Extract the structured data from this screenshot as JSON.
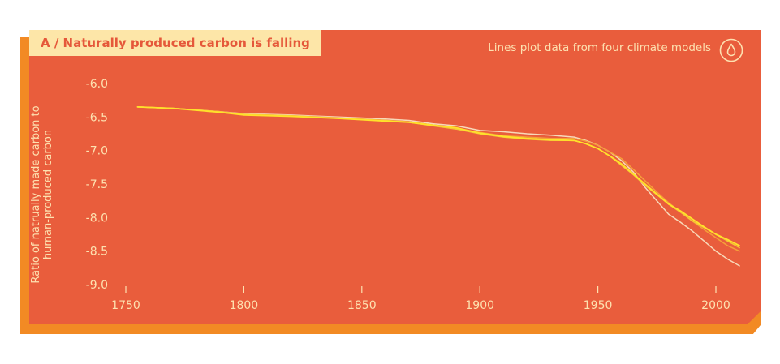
{
  "colors": {
    "panel": "#e95d3c",
    "shadow": "#f28a24",
    "badge_bg": "#fde6a8",
    "badge_text": "#e5583a",
    "text_light": "#fde1b0",
    "axis": "#fde1b0"
  },
  "header": {
    "title": "A / Naturally produced carbon is falling",
    "note": "Lines plot data from four climate models",
    "icon": "drop-icon"
  },
  "chart_data": {
    "type": "line",
    "title": "A / Naturally produced carbon is falling",
    "ylabel_lines": [
      "Ratio of natrually made carbon to",
      "human-produced carbon"
    ],
    "xlabel": "",
    "xlim": [
      1740,
      2015
    ],
    "ylim": [
      -9.0,
      -6.0
    ],
    "x_ticks": [
      "1750",
      "1800",
      "1850",
      "1900",
      "1950",
      "2000"
    ],
    "y_ticks": [
      "-6.0",
      "-6.5",
      "-7.0",
      "-7.5",
      "-8.0",
      "-8.5",
      "-9.0"
    ],
    "grid": false,
    "series": [
      {
        "color": "#f7d9b9",
        "x": [
          1755,
          1770,
          1790,
          1800,
          1820,
          1840,
          1860,
          1870,
          1880,
          1890,
          1900,
          1910,
          1920,
          1930,
          1940,
          1945,
          1950,
          1955,
          1960,
          1965,
          1970,
          1975,
          1980,
          1985,
          1990,
          1995,
          2000,
          2005,
          2010
        ],
        "y": [
          -6.35,
          -6.37,
          -6.42,
          -6.45,
          -6.47,
          -6.5,
          -6.53,
          -6.55,
          -6.6,
          -6.63,
          -6.7,
          -6.72,
          -6.75,
          -6.77,
          -6.8,
          -6.85,
          -6.92,
          -7.02,
          -7.15,
          -7.32,
          -7.55,
          -7.75,
          -7.95,
          -8.07,
          -8.2,
          -8.35,
          -8.5,
          -8.62,
          -8.72
        ]
      },
      {
        "color": "#f5a03a",
        "x": [
          1755,
          1770,
          1790,
          1800,
          1820,
          1840,
          1860,
          1870,
          1880,
          1890,
          1900,
          1910,
          1920,
          1930,
          1940,
          1945,
          1950,
          1955,
          1960,
          1965,
          1970,
          1975,
          1980,
          1985,
          1990,
          1995,
          2000,
          2005,
          2010
        ],
        "y": [
          -6.35,
          -6.37,
          -6.42,
          -6.46,
          -6.48,
          -6.51,
          -6.55,
          -6.57,
          -6.62,
          -6.67,
          -6.73,
          -6.78,
          -6.8,
          -6.82,
          -6.82,
          -6.86,
          -6.92,
          -7.02,
          -7.12,
          -7.28,
          -7.45,
          -7.62,
          -7.78,
          -7.92,
          -8.05,
          -8.18,
          -8.3,
          -8.42,
          -8.5
        ]
      },
      {
        "color": "#f6c637",
        "x": [
          1755,
          1770,
          1790,
          1800,
          1820,
          1840,
          1860,
          1870,
          1880,
          1890,
          1900,
          1910,
          1920,
          1930,
          1940,
          1945,
          1950,
          1955,
          1960,
          1965,
          1970,
          1975,
          1980,
          1985,
          1990,
          1995,
          2000,
          2005,
          2010
        ],
        "y": [
          -6.35,
          -6.37,
          -6.42,
          -6.46,
          -6.48,
          -6.52,
          -6.55,
          -6.58,
          -6.63,
          -6.68,
          -6.75,
          -6.8,
          -6.83,
          -6.85,
          -6.85,
          -6.9,
          -6.97,
          -7.08,
          -7.22,
          -7.36,
          -7.52,
          -7.66,
          -7.8,
          -7.92,
          -8.05,
          -8.15,
          -8.25,
          -8.35,
          -8.45
        ]
      },
      {
        "color": "#ffe22a",
        "x": [
          1755,
          1770,
          1790,
          1800,
          1820,
          1840,
          1860,
          1870,
          1880,
          1890,
          1900,
          1910,
          1920,
          1930,
          1940,
          1945,
          1950,
          1955,
          1960,
          1965,
          1970,
          1975,
          1980,
          1985,
          1990,
          1995,
          2000,
          2005,
          2010
        ],
        "y": [
          -6.35,
          -6.37,
          -6.43,
          -6.47,
          -6.49,
          -6.52,
          -6.56,
          -6.58,
          -6.62,
          -6.66,
          -6.74,
          -6.79,
          -6.82,
          -6.84,
          -6.85,
          -6.9,
          -6.97,
          -7.08,
          -7.2,
          -7.35,
          -7.5,
          -7.65,
          -7.8,
          -7.9,
          -8.02,
          -8.14,
          -8.25,
          -8.33,
          -8.42
        ]
      }
    ]
  }
}
